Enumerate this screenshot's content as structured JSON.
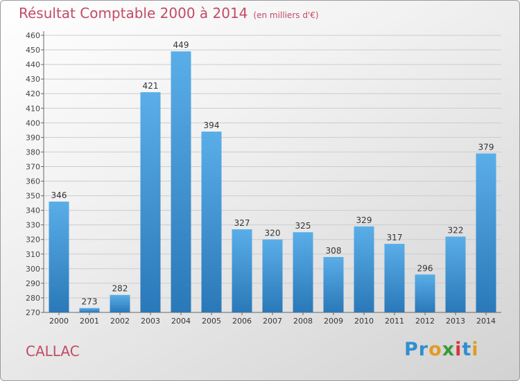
{
  "title": "Résultat Comptable 2000 à 2014",
  "subtitle": "(en milliers d'€)",
  "place": "CALLAC",
  "logo": {
    "letters": [
      "P",
      "r",
      "o",
      "x",
      "i",
      "t",
      "i"
    ],
    "colors": [
      "#2f8fd0",
      "#2f8fd0",
      "#e39a24",
      "#3a9a3a",
      "#d23a3a",
      "#2f8fd0",
      "#e39a24"
    ]
  },
  "colors": {
    "bar_top": "#5aaee8",
    "bar_bottom": "#2a78b8",
    "grid": "#cccccc",
    "title": "#c24a66"
  },
  "chart_data": {
    "type": "bar",
    "title": "Résultat Comptable 2000 à 2014",
    "subtitle": "(en milliers d'€)",
    "categories": [
      "2000",
      "2001",
      "2002",
      "2003",
      "2004",
      "2005",
      "2006",
      "2007",
      "2008",
      "2009",
      "2010",
      "2011",
      "2012",
      "2013",
      "2014"
    ],
    "values": [
      346,
      273,
      282,
      421,
      449,
      394,
      327,
      320,
      325,
      308,
      329,
      317,
      296,
      322,
      379
    ],
    "xlabel": "",
    "ylabel": "",
    "ylim": [
      270,
      460
    ],
    "ytick_step": 10,
    "grid": true
  }
}
